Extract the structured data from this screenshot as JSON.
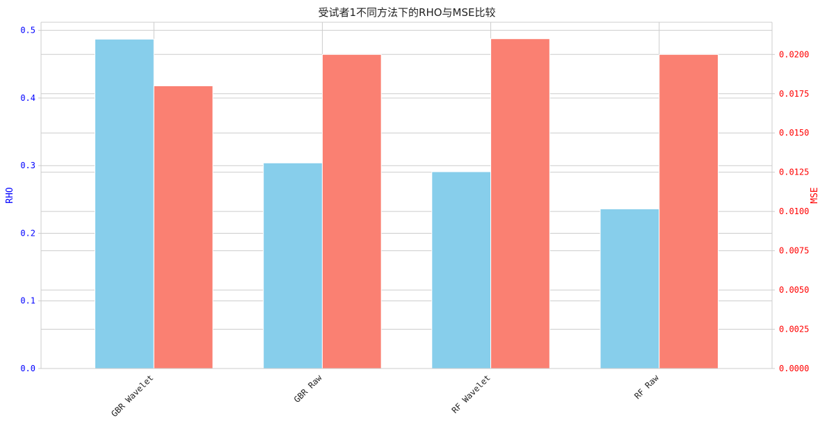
{
  "chart_data": {
    "type": "bar",
    "title": "受试者1不同方法下的RHO与MSE比较",
    "categories": [
      "GBR Wavelet",
      "GBR Raw",
      "RF Wavelet",
      "RF Raw"
    ],
    "series": [
      {
        "name": "RHO",
        "axis": "left",
        "color": "#87ceeb",
        "values": [
          0.487,
          0.304,
          0.291,
          0.236
        ]
      },
      {
        "name": "MSE",
        "axis": "right",
        "color": "#fa8072",
        "values": [
          0.018,
          0.02,
          0.021,
          0.02
        ]
      }
    ],
    "y_left": {
      "label": "RHO",
      "color": "#0000ff",
      "ylim": [
        0,
        0.512
      ],
      "ticks": [
        0.0,
        0.1,
        0.2,
        0.3,
        0.4,
        0.5
      ],
      "tick_labels": [
        "0.0",
        "0.1",
        "0.2",
        "0.3",
        "0.4",
        "0.5"
      ]
    },
    "y_right": {
      "label": "MSE",
      "color": "#ff0000",
      "ylim": [
        0,
        0.02205
      ],
      "ticks": [
        0.0,
        0.0025,
        0.005,
        0.0075,
        0.01,
        0.0125,
        0.015,
        0.0175,
        0.02
      ],
      "tick_labels": [
        "0.0000",
        "0.0025",
        "0.0050",
        "0.0075",
        "0.0100",
        "0.0125",
        "0.0150",
        "0.0175",
        "0.0200"
      ]
    },
    "grid": true
  }
}
